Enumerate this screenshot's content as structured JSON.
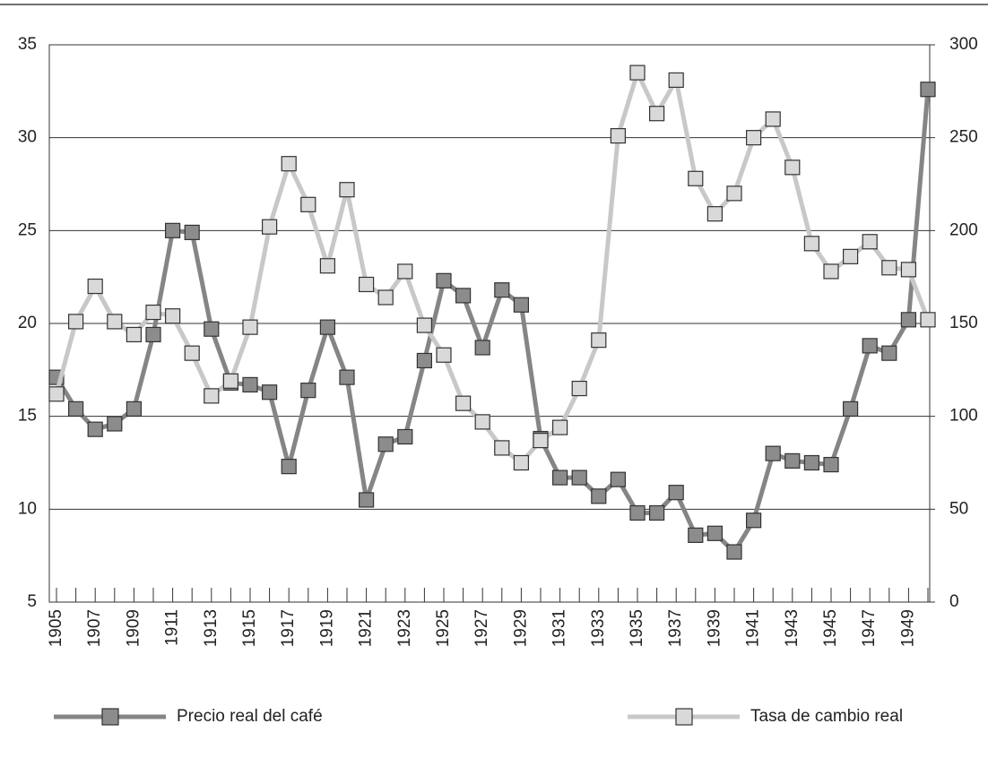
{
  "chart_data": {
    "type": "line",
    "categories": [
      "1905",
      null,
      "1907",
      null,
      "1909",
      null,
      "1911",
      null,
      "1913",
      null,
      "1915",
      null,
      "1917",
      null,
      "1919",
      null,
      "1921",
      null,
      "1923",
      null,
      "1925",
      null,
      "1927",
      null,
      "1929",
      null,
      "1931",
      null,
      "1933",
      null,
      "1935",
      null,
      "1937",
      null,
      "1939",
      null,
      "1941",
      null,
      "1943",
      null,
      "1945",
      null,
      "1947",
      null,
      "1949",
      null
    ],
    "series": [
      {
        "name": "Precio real del café",
        "color": "#858585",
        "marker_color": "#8c8c8c",
        "values": [
          17.1,
          15.4,
          14.3,
          14.6,
          15.4,
          19.4,
          25.0,
          24.9,
          19.7,
          16.8,
          16.7,
          16.3,
          12.3,
          16.4,
          19.8,
          17.1,
          10.5,
          13.5,
          13.9,
          18.0,
          22.3,
          21.5,
          18.7,
          21.8,
          21.0,
          13.8,
          11.7,
          11.7,
          10.7,
          11.6,
          9.8,
          9.8,
          10.9,
          8.6,
          8.7,
          7.7,
          9.4,
          13.0,
          12.6,
          12.5,
          12.4,
          15.4,
          18.8,
          18.4,
          20.2,
          32.6
        ]
      },
      {
        "name": "Tasa de cambio real",
        "color": "#c8c8c8",
        "marker_color": "#d9d9d9",
        "axis": "y2",
        "values": [
          112,
          151,
          170,
          151,
          144,
          156,
          154,
          134,
          111,
          119,
          148,
          202,
          236,
          214,
          181,
          222,
          171,
          164,
          178,
          149,
          133,
          107,
          97,
          83,
          75,
          87,
          94,
          115,
          141,
          251,
          285,
          263,
          281,
          228,
          209,
          220,
          250,
          260,
          234,
          193,
          178,
          186,
          194,
          180,
          179,
          152
        ]
      }
    ],
    "ylim": [
      5,
      35
    ],
    "yticks": [
      5,
      10,
      15,
      20,
      25,
      30,
      35
    ],
    "y2lim": [
      0,
      300
    ],
    "y2ticks": [
      0,
      50,
      100,
      150,
      200,
      250,
      300
    ],
    "grid": true
  }
}
